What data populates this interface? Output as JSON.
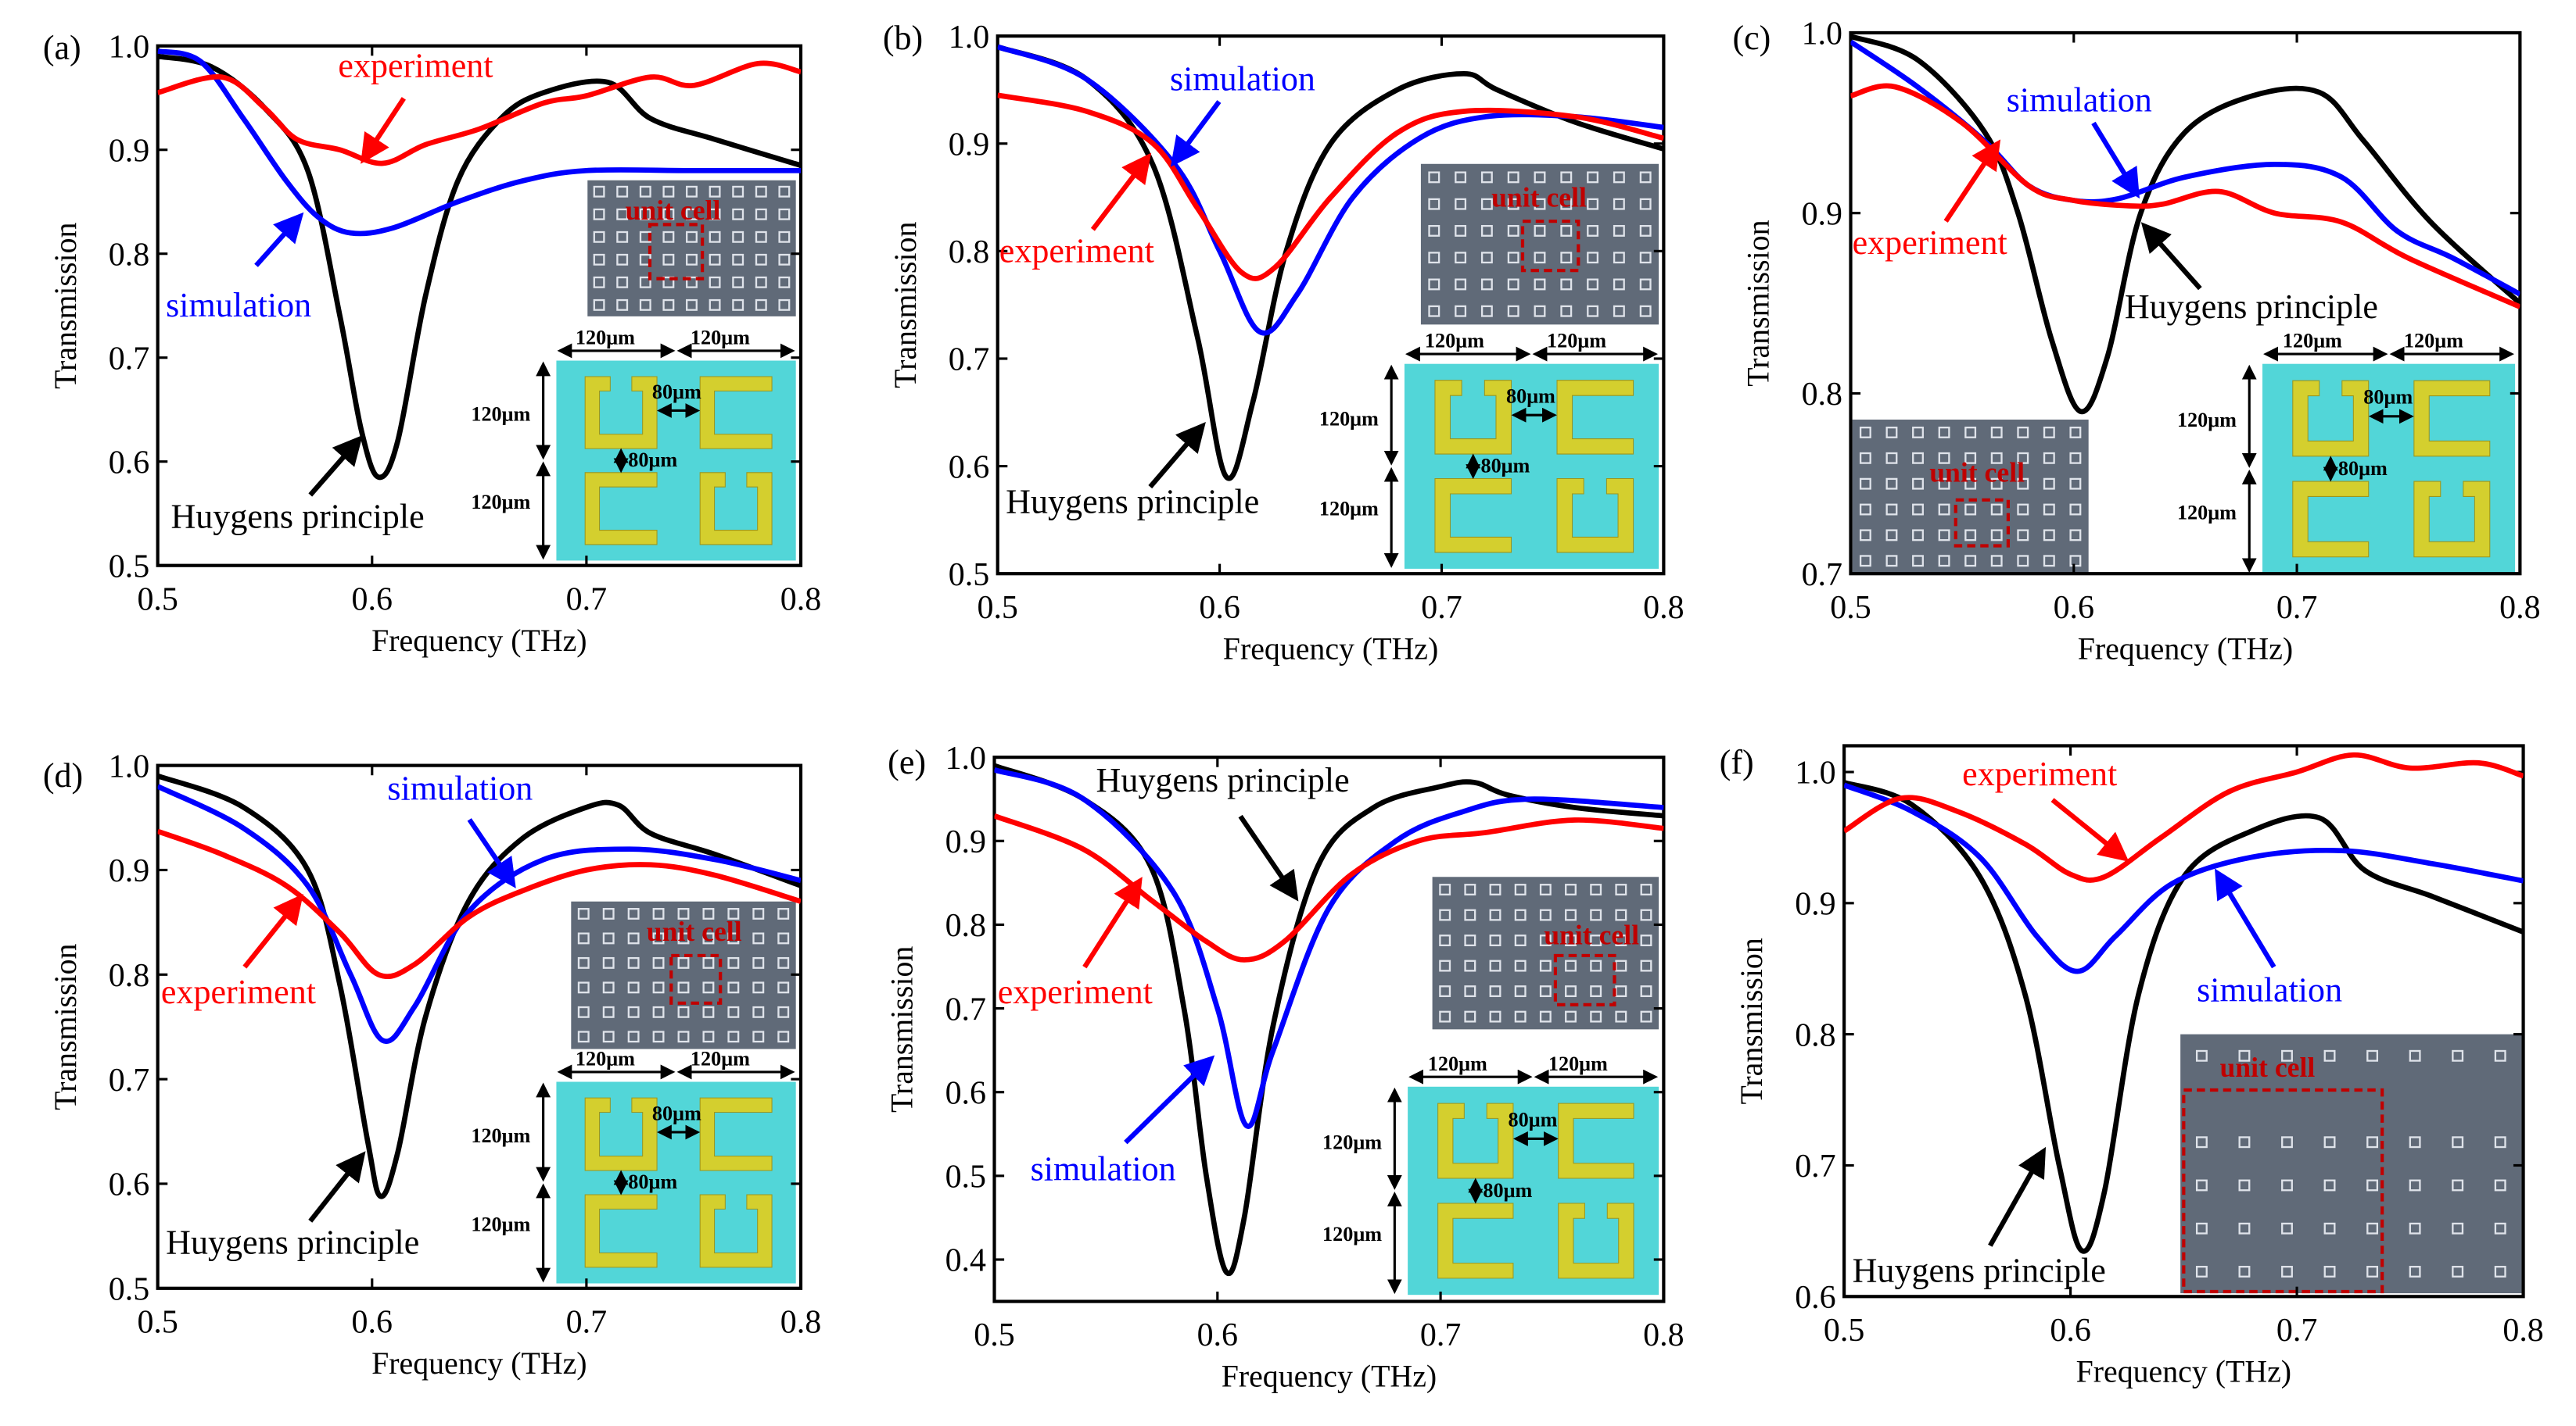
{
  "colors": {
    "huygens": "#000000",
    "simulation": "#0000ff",
    "experiment": "#ff0000",
    "inset_bg": "#52d6d8",
    "resonator": "#d4cf2e",
    "sem": "#606a78",
    "unit_cell": "#c00000"
  },
  "labels": {
    "experiment": "experiment",
    "simulation": "simulation",
    "huygens": "Huygens principle",
    "unit_cell": "unit cell",
    "dim_120": "120μm",
    "dim_80": "80μm"
  },
  "chart_data": [
    {
      "type": "line",
      "panel": "(a)",
      "xlabel": "Frequency (THz)",
      "ylabel": "Transmission",
      "xlim": [
        0.5,
        0.8
      ],
      "ylim": [
        0.5,
        1.0
      ],
      "xticks": [
        "0.5",
        "0.6",
        "0.7",
        "0.8"
      ],
      "yticks": [
        "0.5",
        "0.6",
        "0.7",
        "0.8",
        "0.9",
        "1.0"
      ],
      "schematic": true,
      "series": [
        {
          "name": "Huygens principle",
          "x": [
            0.5,
            0.525,
            0.55,
            0.57,
            0.585,
            0.595,
            0.603,
            0.612,
            0.625,
            0.64,
            0.66,
            0.68,
            0.71,
            0.73,
            0.76,
            0.8
          ],
          "y": [
            0.99,
            0.98,
            0.94,
            0.88,
            0.74,
            0.63,
            0.585,
            0.62,
            0.76,
            0.87,
            0.93,
            0.955,
            0.965,
            0.93,
            0.91,
            0.885
          ]
        },
        {
          "name": "simulation",
          "x": [
            0.5,
            0.52,
            0.54,
            0.56,
            0.575,
            0.59,
            0.61,
            0.64,
            0.67,
            0.7,
            0.75,
            0.8
          ],
          "y": [
            0.995,
            0.985,
            0.93,
            0.87,
            0.835,
            0.82,
            0.825,
            0.85,
            0.87,
            0.88,
            0.88,
            0.88
          ]
        },
        {
          "name": "experiment",
          "x": [
            0.5,
            0.53,
            0.55,
            0.565,
            0.585,
            0.605,
            0.625,
            0.65,
            0.68,
            0.7,
            0.73,
            0.75,
            0.78,
            0.8
          ],
          "y": [
            0.955,
            0.97,
            0.94,
            0.91,
            0.9,
            0.887,
            0.905,
            0.92,
            0.945,
            0.952,
            0.97,
            0.962,
            0.983,
            0.975
          ]
        }
      ]
    },
    {
      "type": "line",
      "panel": "(b)",
      "xlabel": "Frequency (THz)",
      "ylabel": "Transmission",
      "xlim": [
        0.5,
        0.8
      ],
      "ylim": [
        0.5,
        1.0
      ],
      "xticks": [
        "0.5",
        "0.6",
        "0.7",
        "0.8"
      ],
      "yticks": [
        "0.5",
        "0.6",
        "0.7",
        "0.8",
        "0.9",
        "1.0"
      ],
      "schematic": true,
      "series": [
        {
          "name": "Huygens principle",
          "x": [
            0.5,
            0.54,
            0.57,
            0.59,
            0.603,
            0.615,
            0.63,
            0.65,
            0.68,
            0.71,
            0.725,
            0.76,
            0.8
          ],
          "y": [
            0.99,
            0.96,
            0.88,
            0.72,
            0.59,
            0.66,
            0.8,
            0.9,
            0.95,
            0.965,
            0.95,
            0.92,
            0.895
          ]
        },
        {
          "name": "simulation",
          "x": [
            0.5,
            0.54,
            0.58,
            0.6,
            0.618,
            0.635,
            0.66,
            0.69,
            0.72,
            0.76,
            0.8
          ],
          "y": [
            0.99,
            0.96,
            0.88,
            0.8,
            0.725,
            0.76,
            0.85,
            0.905,
            0.925,
            0.925,
            0.915
          ]
        },
        {
          "name": "experiment",
          "x": [
            0.5,
            0.54,
            0.57,
            0.59,
            0.61,
            0.625,
            0.65,
            0.68,
            0.71,
            0.76,
            0.8
          ],
          "y": [
            0.945,
            0.93,
            0.9,
            0.84,
            0.78,
            0.785,
            0.85,
            0.91,
            0.93,
            0.925,
            0.905
          ]
        }
      ]
    },
    {
      "type": "line",
      "panel": "(c)",
      "xlabel": "Frequency (THz)",
      "ylabel": "Transmission",
      "xlim": [
        0.5,
        0.8
      ],
      "ylim": [
        0.7,
        1.0
      ],
      "xticks": [
        "0.5",
        "0.6",
        "0.7",
        "0.8"
      ],
      "yticks": [
        "0.7",
        "0.8",
        "0.9",
        "1.0"
      ],
      "schematic": true,
      "series": [
        {
          "name": "Huygens principle",
          "x": [
            0.5,
            0.53,
            0.56,
            0.575,
            0.59,
            0.603,
            0.615,
            0.63,
            0.65,
            0.68,
            0.71,
            0.73,
            0.76,
            0.8
          ],
          "y": [
            0.998,
            0.985,
            0.945,
            0.9,
            0.83,
            0.79,
            0.82,
            0.9,
            0.945,
            0.965,
            0.967,
            0.94,
            0.895,
            0.85
          ]
        },
        {
          "name": "simulation",
          "x": [
            0.5,
            0.53,
            0.56,
            0.58,
            0.6,
            0.62,
            0.65,
            0.69,
            0.72,
            0.745,
            0.77,
            0.8
          ],
          "y": [
            0.995,
            0.97,
            0.94,
            0.915,
            0.907,
            0.908,
            0.92,
            0.927,
            0.92,
            0.89,
            0.875,
            0.855
          ]
        },
        {
          "name": "experiment",
          "x": [
            0.5,
            0.52,
            0.55,
            0.58,
            0.6,
            0.625,
            0.64,
            0.665,
            0.69,
            0.72,
            0.75,
            0.8
          ],
          "y": [
            0.965,
            0.97,
            0.95,
            0.915,
            0.907,
            0.904,
            0.905,
            0.912,
            0.9,
            0.895,
            0.875,
            0.848
          ]
        }
      ]
    },
    {
      "type": "line",
      "panel": "(d)",
      "xlabel": "Frequency (THz)",
      "ylabel": "Transmission",
      "xlim": [
        0.5,
        0.8
      ],
      "ylim": [
        0.5,
        1.0
      ],
      "xticks": [
        "0.5",
        "0.6",
        "0.7",
        "0.8"
      ],
      "yticks": [
        "0.5",
        "0.6",
        "0.7",
        "0.8",
        "0.9",
        "1.0"
      ],
      "schematic": true,
      "series": [
        {
          "name": "Huygens principle",
          "x": [
            0.5,
            0.54,
            0.57,
            0.585,
            0.598,
            0.604,
            0.612,
            0.625,
            0.645,
            0.67,
            0.7,
            0.715,
            0.73,
            0.76,
            0.8
          ],
          "y": [
            0.99,
            0.96,
            0.9,
            0.79,
            0.64,
            0.588,
            0.63,
            0.76,
            0.87,
            0.93,
            0.96,
            0.962,
            0.935,
            0.915,
            0.885
          ]
        },
        {
          "name": "simulation",
          "x": [
            0.5,
            0.54,
            0.57,
            0.59,
            0.605,
            0.62,
            0.645,
            0.68,
            0.72,
            0.76,
            0.8
          ],
          "y": [
            0.98,
            0.94,
            0.885,
            0.8,
            0.737,
            0.77,
            0.86,
            0.91,
            0.92,
            0.91,
            0.89
          ]
        },
        {
          "name": "experiment",
          "x": [
            0.5,
            0.53,
            0.56,
            0.585,
            0.603,
            0.62,
            0.645,
            0.67,
            0.7,
            0.73,
            0.76,
            0.8
          ],
          "y": [
            0.937,
            0.915,
            0.885,
            0.84,
            0.8,
            0.81,
            0.855,
            0.88,
            0.9,
            0.905,
            0.895,
            0.87
          ]
        }
      ]
    },
    {
      "type": "line",
      "panel": "(e)",
      "xlabel": "Frequency (THz)",
      "ylabel": "Transmission",
      "xlim": [
        0.5,
        0.8
      ],
      "ylim": [
        0.35,
        1.0
      ],
      "xticks": [
        "0.5",
        "0.6",
        "0.7",
        "0.8"
      ],
      "yticks": [
        "0.4",
        "0.5",
        "0.6",
        "0.7",
        "0.8",
        "0.9",
        "1.0"
      ],
      "schematic": true,
      "series": [
        {
          "name": "Huygens principle",
          "x": [
            0.5,
            0.54,
            0.57,
            0.585,
            0.595,
            0.604,
            0.612,
            0.625,
            0.645,
            0.67,
            0.7,
            0.715,
            0.73,
            0.76,
            0.8
          ],
          "y": [
            0.99,
            0.95,
            0.87,
            0.7,
            0.5,
            0.385,
            0.45,
            0.68,
            0.87,
            0.94,
            0.965,
            0.97,
            0.955,
            0.94,
            0.93
          ]
        },
        {
          "name": "simulation",
          "x": [
            0.5,
            0.54,
            0.58,
            0.6,
            0.613,
            0.625,
            0.65,
            0.68,
            0.71,
            0.74,
            0.8
          ],
          "y": [
            0.985,
            0.95,
            0.84,
            0.7,
            0.56,
            0.65,
            0.82,
            0.9,
            0.935,
            0.95,
            0.94
          ]
        },
        {
          "name": "experiment",
          "x": [
            0.5,
            0.54,
            0.57,
            0.595,
            0.612,
            0.63,
            0.66,
            0.69,
            0.72,
            0.76,
            0.8
          ],
          "y": [
            0.93,
            0.89,
            0.83,
            0.78,
            0.758,
            0.78,
            0.86,
            0.9,
            0.91,
            0.925,
            0.915
          ]
        }
      ]
    },
    {
      "type": "line",
      "panel": "(f)",
      "xlabel": "Frequency (THz)",
      "ylabel": "Transmission",
      "xlim": [
        0.5,
        0.8
      ],
      "ylim": [
        0.6,
        1.02
      ],
      "xticks": [
        "0.5",
        "0.6",
        "0.7",
        "0.8"
      ],
      "yticks": [
        "0.6",
        "0.7",
        "0.8",
        "0.9",
        "1.0"
      ],
      "schematic": false,
      "series": [
        {
          "name": "Huygens principle",
          "x": [
            0.5,
            0.53,
            0.56,
            0.58,
            0.595,
            0.605,
            0.615,
            0.63,
            0.65,
            0.68,
            0.71,
            0.73,
            0.76,
            0.8
          ],
          "y": [
            0.992,
            0.975,
            0.92,
            0.83,
            0.7,
            0.635,
            0.68,
            0.83,
            0.92,
            0.955,
            0.965,
            0.925,
            0.905,
            0.878
          ]
        },
        {
          "name": "simulation",
          "x": [
            0.5,
            0.53,
            0.56,
            0.585,
            0.603,
            0.62,
            0.645,
            0.68,
            0.72,
            0.76,
            0.8
          ],
          "y": [
            0.99,
            0.97,
            0.935,
            0.875,
            0.848,
            0.875,
            0.915,
            0.935,
            0.94,
            0.93,
            0.917
          ]
        },
        {
          "name": "experiment",
          "x": [
            0.5,
            0.525,
            0.55,
            0.58,
            0.6,
            0.615,
            0.64,
            0.67,
            0.7,
            0.725,
            0.75,
            0.78,
            0.8
          ],
          "y": [
            0.955,
            0.98,
            0.97,
            0.945,
            0.922,
            0.92,
            0.95,
            0.985,
            1.0,
            1.013,
            1.003,
            1.007,
            0.997
          ]
        }
      ]
    }
  ]
}
